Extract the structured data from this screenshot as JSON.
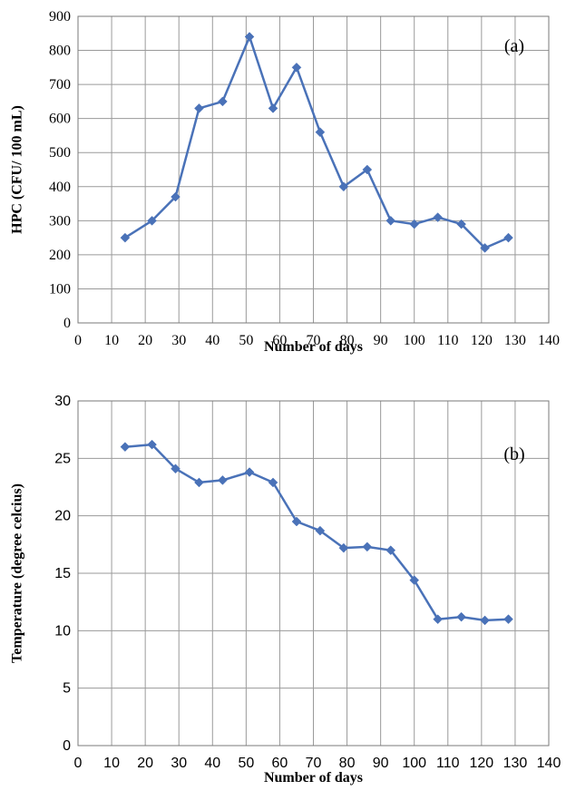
{
  "chart_data": [
    {
      "type": "line",
      "panel_label": "(a)",
      "xlabel": "Number of days",
      "ylabel": "HPC (CFU/ 100 mL)",
      "xlim": [
        0,
        140
      ],
      "ylim": [
        0,
        900
      ],
      "xticks": [
        "0",
        "10",
        "20",
        "30",
        "40",
        "50",
        "60",
        "70",
        "80",
        "90",
        "100",
        "110",
        "120",
        "130",
        "140"
      ],
      "yticks": [
        "0",
        "100",
        "200",
        "300",
        "400",
        "500",
        "600",
        "700",
        "800",
        "900"
      ],
      "grid": true,
      "color": "#4a72b8",
      "marker": "diamond",
      "x": [
        14,
        22,
        29,
        36,
        43,
        51,
        58,
        65,
        72,
        79,
        86,
        93,
        100,
        107,
        114,
        121,
        128
      ],
      "y": [
        250,
        300,
        370,
        630,
        650,
        840,
        630,
        750,
        560,
        400,
        450,
        300,
        290,
        310,
        290,
        220,
        250
      ]
    },
    {
      "type": "line",
      "panel_label": "(b)",
      "xlabel": "Number of days",
      "ylabel": "Temperature (degree celcius)",
      "xlim": [
        0,
        140
      ],
      "ylim": [
        0,
        30
      ],
      "xticks": [
        "0",
        "10",
        "20",
        "30",
        "40",
        "50",
        "60",
        "70",
        "80",
        "90",
        "100",
        "110",
        "120",
        "130",
        "140"
      ],
      "yticks": [
        "0",
        "5",
        "10",
        "15",
        "20",
        "25",
        "30"
      ],
      "grid": true,
      "color": "#4a72b8",
      "marker": "diamond",
      "x": [
        14,
        22,
        29,
        36,
        43,
        51,
        58,
        65,
        72,
        79,
        86,
        93,
        100,
        107,
        114,
        121,
        128
      ],
      "y": [
        26.0,
        26.2,
        24.1,
        22.9,
        23.1,
        23.8,
        22.9,
        19.5,
        18.7,
        17.2,
        17.3,
        17.0,
        14.4,
        11.0,
        11.2,
        10.9,
        11.0
      ]
    }
  ]
}
